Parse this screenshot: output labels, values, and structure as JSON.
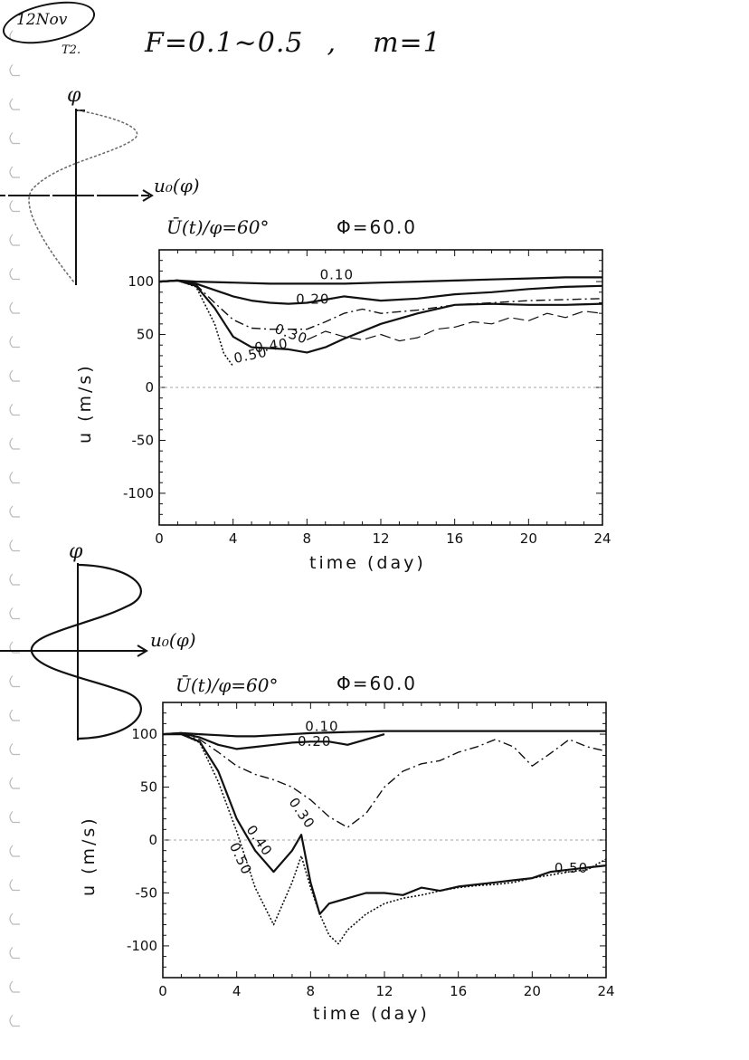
{
  "heading": {
    "left": "F=0.1~0.5",
    "sep": ",",
    "right": "m=1"
  },
  "note": {
    "line1": "12Nov",
    "line2": "T2."
  },
  "chart_data": [
    {
      "type": "line",
      "title": "Φ=60.0",
      "annotation": "Ū(t)/φ=60°",
      "profile": {
        "axis_y": "φ",
        "axis_x": "u₀(φ)"
      },
      "xlabel": "time (day)",
      "ylabel": "u (m/s)",
      "xlim": [
        0,
        24
      ],
      "ylim": [
        -130,
        130
      ],
      "xticks": [
        "0",
        "4",
        "8",
        "12",
        "16",
        "20",
        "24"
      ],
      "yticks": [
        "100",
        "50",
        "0",
        "-50",
        "-100"
      ],
      "series": [
        {
          "name": "0.10",
          "label": "0.10",
          "x": [
            0,
            1,
            2,
            4,
            6,
            8,
            10,
            12,
            14,
            16,
            18,
            20,
            22,
            24
          ],
          "y": [
            100,
            101,
            100,
            99,
            98,
            98,
            98,
            99,
            100,
            101,
            102,
            103,
            104,
            104
          ]
        },
        {
          "name": "0.20",
          "label": "0.20",
          "x": [
            0,
            1,
            2,
            3,
            4,
            5,
            6,
            7,
            8,
            9,
            10,
            12,
            14,
            16,
            18,
            20,
            22,
            24
          ],
          "y": [
            100,
            101,
            98,
            92,
            86,
            82,
            80,
            79,
            80,
            83,
            86,
            82,
            84,
            88,
            90,
            93,
            95,
            96
          ]
        },
        {
          "name": "0.30",
          "label": "0.30",
          "x": [
            0,
            1,
            2,
            3,
            4,
            5,
            6,
            7,
            8,
            9,
            10,
            11,
            12,
            14,
            16,
            18,
            20,
            22,
            24
          ],
          "y": [
            100,
            101,
            97,
            80,
            64,
            56,
            55,
            55,
            55,
            62,
            70,
            74,
            70,
            73,
            78,
            80,
            82,
            83,
            84
          ]
        },
        {
          "name": "0.40",
          "label": "0.40",
          "x": [
            0,
            1,
            2,
            3,
            4,
            5,
            6,
            7,
            8,
            9,
            10,
            12,
            14,
            16,
            18,
            20,
            22,
            24
          ],
          "y": [
            100,
            101,
            96,
            75,
            48,
            38,
            37,
            36,
            33,
            38,
            46,
            60,
            70,
            78,
            79,
            78,
            78,
            79
          ]
        },
        {
          "name": "0.50",
          "label": "0.50",
          "x": [
            0,
            1,
            2,
            3,
            3.5,
            4
          ],
          "y": [
            100,
            101,
            95,
            60,
            32,
            20
          ]
        },
        {
          "name": "0.50-osc",
          "label": "",
          "x": [
            8,
            9,
            10,
            11,
            12,
            13,
            14,
            15,
            16,
            17,
            18,
            19,
            20,
            21,
            22,
            23,
            24
          ],
          "y": [
            45,
            53,
            48,
            45,
            50,
            44,
            47,
            55,
            57,
            62,
            60,
            66,
            63,
            70,
            66,
            72,
            70
          ]
        },
        {
          "name": "zero-line",
          "label": "",
          "x": [
            0,
            24
          ],
          "y": [
            0,
            0
          ]
        }
      ]
    },
    {
      "type": "line",
      "title": "Φ=60.0",
      "annotation": "Ū(t)/φ=60°",
      "profile": {
        "axis_y": "φ",
        "axis_x": "u₀(φ)"
      },
      "xlabel": "time (day)",
      "ylabel": "u (m/s)",
      "xlim": [
        0,
        24
      ],
      "ylim": [
        -130,
        130
      ],
      "xticks": [
        "0",
        "4",
        "8",
        "12",
        "16",
        "20",
        "24"
      ],
      "yticks": [
        "100",
        "50",
        "0",
        "-50",
        "-100"
      ],
      "series": [
        {
          "name": "0.10",
          "label": "0.10",
          "x": [
            0,
            1,
            2,
            3,
            4,
            5,
            6,
            8,
            10,
            12,
            14,
            16,
            18,
            20,
            22,
            24
          ],
          "y": [
            100,
            101,
            100,
            99,
            98,
            98,
            99,
            101,
            102,
            103,
            103,
            103,
            103,
            103,
            103,
            103
          ]
        },
        {
          "name": "0.20",
          "label": "0.20",
          "x": [
            0,
            1,
            2,
            3,
            4,
            5,
            6,
            7,
            8,
            9,
            10,
            11,
            12
          ],
          "y": [
            100,
            101,
            97,
            90,
            86,
            88,
            90,
            92,
            93,
            93,
            90,
            95,
            100
          ]
        },
        {
          "name": "0.30",
          "label": "0.30",
          "x": [
            0,
            1,
            2,
            3,
            4,
            5,
            6,
            7,
            8,
            9,
            10,
            11,
            12,
            13,
            14,
            15,
            16,
            17,
            18,
            19,
            20,
            21,
            22,
            23,
            24
          ],
          "y": [
            100,
            100,
            95,
            83,
            70,
            62,
            57,
            50,
            38,
            22,
            12,
            25,
            50,
            65,
            72,
            75,
            83,
            88,
            95,
            88,
            70,
            82,
            95,
            88,
            84
          ]
        },
        {
          "name": "0.40",
          "label": "0.40",
          "x": [
            0,
            1,
            2,
            3,
            4,
            5,
            6,
            7,
            7.5,
            8,
            8.5,
            9,
            10,
            11,
            12,
            13,
            14,
            15,
            16,
            17,
            18,
            19,
            20,
            21,
            22,
            23,
            24
          ],
          "y": [
            100,
            100,
            93,
            65,
            20,
            -10,
            -30,
            -10,
            5,
            -40,
            -70,
            -60,
            -55,
            -50,
            -50,
            -52,
            -45,
            -48,
            -44,
            -42,
            -40,
            -38,
            -36,
            -30,
            -28,
            -26,
            -24
          ]
        },
        {
          "name": "0.50",
          "label": "0.50",
          "x": [
            0,
            1,
            2,
            3,
            4,
            5,
            6,
            6.5,
            7,
            7.5,
            8,
            8.5,
            9,
            9.5,
            10,
            11,
            12,
            13,
            14,
            15,
            16,
            17,
            18,
            19,
            20,
            21,
            22,
            23,
            24
          ],
          "y": [
            100,
            100,
            92,
            55,
            8,
            -45,
            -80,
            -60,
            -40,
            -15,
            -45,
            -70,
            -90,
            -98,
            -85,
            -70,
            -60,
            -55,
            -52,
            -48,
            -45,
            -43,
            -42,
            -40,
            -36,
            -33,
            -30,
            -28,
            -18
          ]
        },
        {
          "name": "zero-line",
          "label": "",
          "x": [
            0,
            24
          ],
          "y": [
            0,
            0
          ]
        }
      ],
      "extra_labels": [
        "0.50"
      ]
    }
  ]
}
